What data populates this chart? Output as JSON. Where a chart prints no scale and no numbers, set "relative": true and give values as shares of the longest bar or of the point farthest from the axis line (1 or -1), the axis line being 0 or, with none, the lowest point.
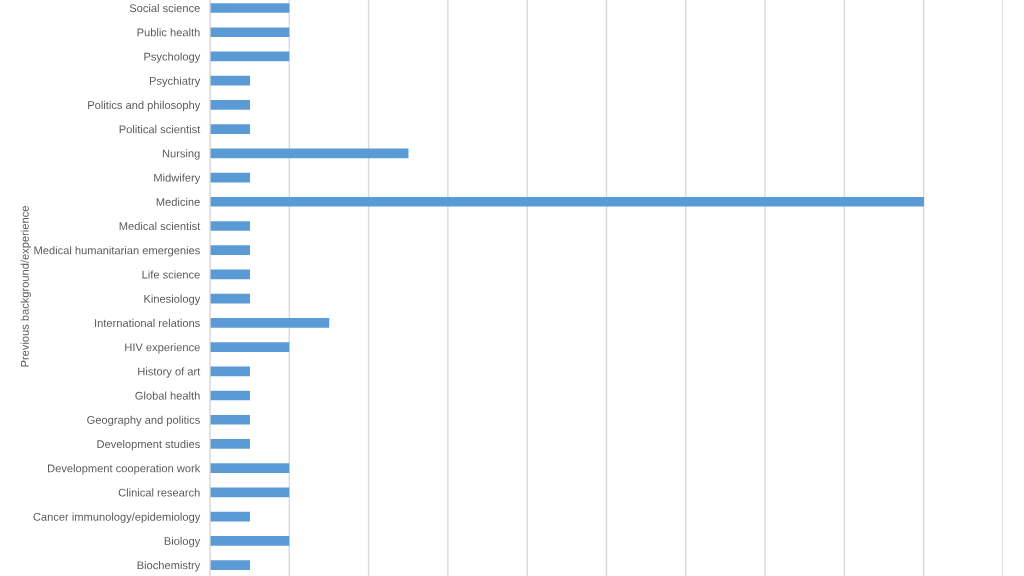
{
  "chart_data": {
    "type": "bar",
    "orientation": "horizontal",
    "relative": true,
    "ylabel": "Previous background/experience",
    "categories": [
      "Social science",
      "Public health",
      "Psychology",
      "Psychiatry",
      "Politics and philosophy",
      "Political scientist",
      "Nursing",
      "Midwifery",
      "Medicine",
      "Medical scientist",
      "Medical humanitarian emergenies",
      "Life science",
      "Kinesiology",
      "International relations",
      "HIV experience",
      "History of art",
      "Global health",
      "Geography and politics",
      "Development studies",
      "Development cooperation work",
      "Clinical research",
      "Cancer immunology/epidemiology",
      "Biology",
      "Biochemistry"
    ],
    "values": [
      0.111,
      0.111,
      0.111,
      0.056,
      0.056,
      0.056,
      0.278,
      0.056,
      1,
      0.056,
      0.056,
      0.056,
      0.056,
      0.167,
      0.111,
      0.056,
      0.056,
      0.056,
      0.056,
      0.111,
      0.111,
      0.056,
      0.111,
      0.056
    ],
    "color": "#5b9bd5",
    "grid": "x",
    "tick_labels": "y"
  }
}
